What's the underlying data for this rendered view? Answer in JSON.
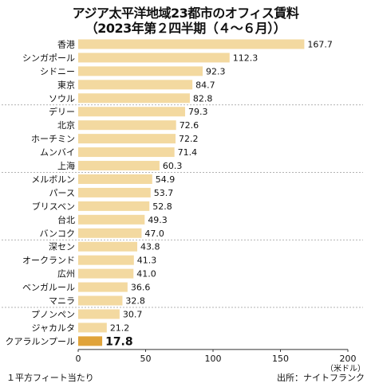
{
  "chart_data": {
    "type": "bar",
    "orientation": "horizontal",
    "title": "アジア太平洋地域23都市のオフィス賃料",
    "subtitle": "（2023年第２四半期（４～６月））",
    "categories": [
      "香港",
      "シンガポール",
      "シドニー",
      "東京",
      "ソウル",
      "デリー",
      "北京",
      "ホーチミン",
      "ムンバイ",
      "上海",
      "メルボルン",
      "パース",
      "ブリスベン",
      "台北",
      "バンコク",
      "深セン",
      "オークランド",
      "広州",
      "ベンガルール",
      "マニラ",
      "プノンペン",
      "ジャカルタ",
      "クアラルンプール"
    ],
    "values": [
      167.7,
      112.3,
      92.3,
      84.7,
      82.8,
      79.3,
      72.6,
      72.2,
      71.4,
      60.3,
      54.9,
      53.7,
      52.8,
      49.3,
      47.0,
      43.8,
      41.3,
      41.0,
      36.6,
      32.8,
      30.7,
      21.2,
      17.8
    ],
    "value_labels": [
      "167.7",
      "112.3",
      "92.3",
      "84.7",
      "82.8",
      "79.3",
      "72.6",
      "72.2",
      "71.4",
      "60.3",
      "54.9",
      "53.7",
      "52.8",
      "49.3",
      "47.0",
      "43.8",
      "41.3",
      "41.0",
      "36.6",
      "32.8",
      "30.7",
      "21.2",
      "17.8"
    ],
    "highlight": "クアラルンプール",
    "group_breaks_after": [
      4,
      9,
      14,
      19
    ],
    "xlim": [
      0,
      200
    ],
    "xticks": [
      "0",
      "50",
      "100",
      "150",
      "200"
    ],
    "xunit": "（米ドル）",
    "colors": {
      "bar": "#f3d9a0",
      "highlight": "#e0a33a",
      "divider": "#999999"
    }
  },
  "notes": {
    "left": "１平方フィート当たり",
    "right": "出所：ナイトフランク"
  }
}
